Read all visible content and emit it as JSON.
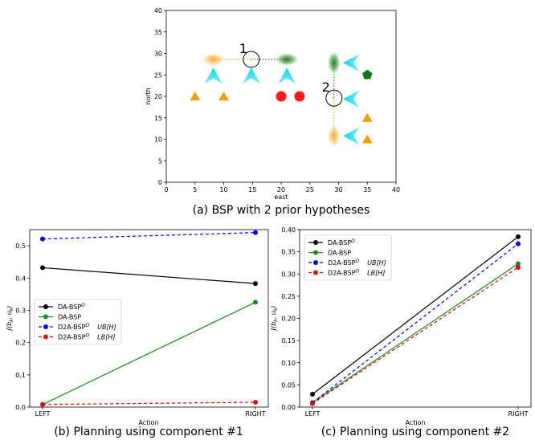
{
  "chart_data": [
    {
      "type": "scatter",
      "caption": "(a) BSP with 2 prior hypotheses",
      "xlabel": "east",
      "ylabel": "north",
      "xlim": [
        0,
        40
      ],
      "ylim": [
        0,
        40
      ],
      "xticks": [
        0,
        5,
        10,
        15,
        20,
        25,
        30,
        35,
        40
      ],
      "yticks": [
        0,
        5,
        10,
        15,
        20,
        25,
        30,
        35,
        40
      ],
      "orange_blobs": [
        [
          8.2,
          28.6
        ],
        [
          29.2,
          10.8
        ]
      ],
      "green_blobs": [
        [
          21,
          28.6
        ],
        [
          29.2,
          27.8
        ]
      ],
      "circles": [
        {
          "x": 14.8,
          "y": 28.6,
          "label": "1"
        },
        {
          "x": 29.2,
          "y": 19.6,
          "label": "2"
        }
      ],
      "cyan_cones_up": [
        [
          8.2,
          24.8
        ],
        [
          14.8,
          24.8
        ],
        [
          21,
          24.8
        ]
      ],
      "cyan_cones_left": [
        [
          32.2,
          27.8
        ],
        [
          32.2,
          19.4
        ],
        [
          32.2,
          10.8
        ]
      ],
      "red_points": [
        [
          20,
          20
        ],
        [
          23.2,
          20
        ]
      ],
      "orange_triangles": [
        [
          5,
          20
        ],
        [
          10,
          20
        ],
        [
          35,
          15
        ],
        [
          35,
          10
        ]
      ],
      "green_pentagon": [
        35,
        25
      ],
      "links": [
        {
          "from": [
            8.2,
            28.6
          ],
          "to": [
            14.8,
            28.6
          ],
          "color": "#e6a020"
        },
        {
          "from": [
            14.8,
            28.6
          ],
          "to": [
            21,
            28.6
          ],
          "color": "#2e7d2e"
        },
        {
          "from": [
            29.2,
            27.8
          ],
          "to": [
            29.2,
            19.6
          ],
          "color": "#2e7d2e"
        },
        {
          "from": [
            29.2,
            19.6
          ],
          "to": [
            29.2,
            10.8
          ],
          "color": "#e6a020"
        }
      ]
    },
    {
      "type": "line",
      "caption": "(b) Planning using component #1",
      "xlabel": "Action",
      "ylabel": "J(b_k, u_k)",
      "categories": [
        "LEFT",
        "RIGHT"
      ],
      "ylim": [
        0,
        0.55
      ],
      "yticks": [
        0.0,
        0.1,
        0.2,
        0.3,
        0.4,
        0.5
      ],
      "yticklabels": [
        "0.0",
        "0.1",
        "0.2",
        "0.3",
        "0.4",
        "0.5"
      ],
      "legend_position": "center-left",
      "series": [
        {
          "name": "DA-BSP",
          "sup": "O",
          "suffix": "",
          "values": [
            0.432,
            0.383
          ],
          "color": "#000000",
          "dash": false
        },
        {
          "name": "DA-BSP",
          "sup": "",
          "suffix": "",
          "values": [
            0.008,
            0.325
          ],
          "color": "#1a8a1a",
          "dash": false
        },
        {
          "name": "D2A-BSP",
          "sup": "O",
          "suffix": "UB[H]",
          "values": [
            0.521,
            0.541
          ],
          "color": "#0000ee",
          "dash": true
        },
        {
          "name": "D2A-BSP",
          "sup": "O",
          "suffix": "LB[H]",
          "values": [
            0.008,
            0.015
          ],
          "color": "#ee0000",
          "dash": true
        }
      ]
    },
    {
      "type": "line",
      "caption": "(c) Planning using component #2",
      "xlabel": "Action",
      "ylabel": "J(b_k, u_k)",
      "categories": [
        "LEFT",
        "RIGHT"
      ],
      "ylim": [
        0,
        0.4
      ],
      "yticks": [
        0.0,
        0.05,
        0.1,
        0.15,
        0.2,
        0.25,
        0.3,
        0.35,
        0.4
      ],
      "yticklabels": [
        "0.00",
        "0.05",
        "0.10",
        "0.15",
        "0.20",
        "0.25",
        "0.30",
        "0.35",
        "0.40"
      ],
      "legend_position": "top-left",
      "series": [
        {
          "name": "DA-BSP",
          "sup": "O",
          "suffix": "",
          "values": [
            0.029,
            0.384
          ],
          "color": "#000000",
          "dash": false
        },
        {
          "name": "DA-BSP",
          "sup": "",
          "suffix": "",
          "values": [
            0.01,
            0.323
          ],
          "color": "#1a8a1a",
          "dash": false
        },
        {
          "name": "D2A-BSP",
          "sup": "O",
          "suffix": "UB[H]",
          "values": [
            0.01,
            0.368
          ],
          "color": "#0000ee",
          "dash": true
        },
        {
          "name": "D2A-BSP",
          "sup": "O",
          "suffix": "LB[H]",
          "values": [
            0.008,
            0.315
          ],
          "color": "#ee0000",
          "dash": true
        }
      ]
    }
  ]
}
